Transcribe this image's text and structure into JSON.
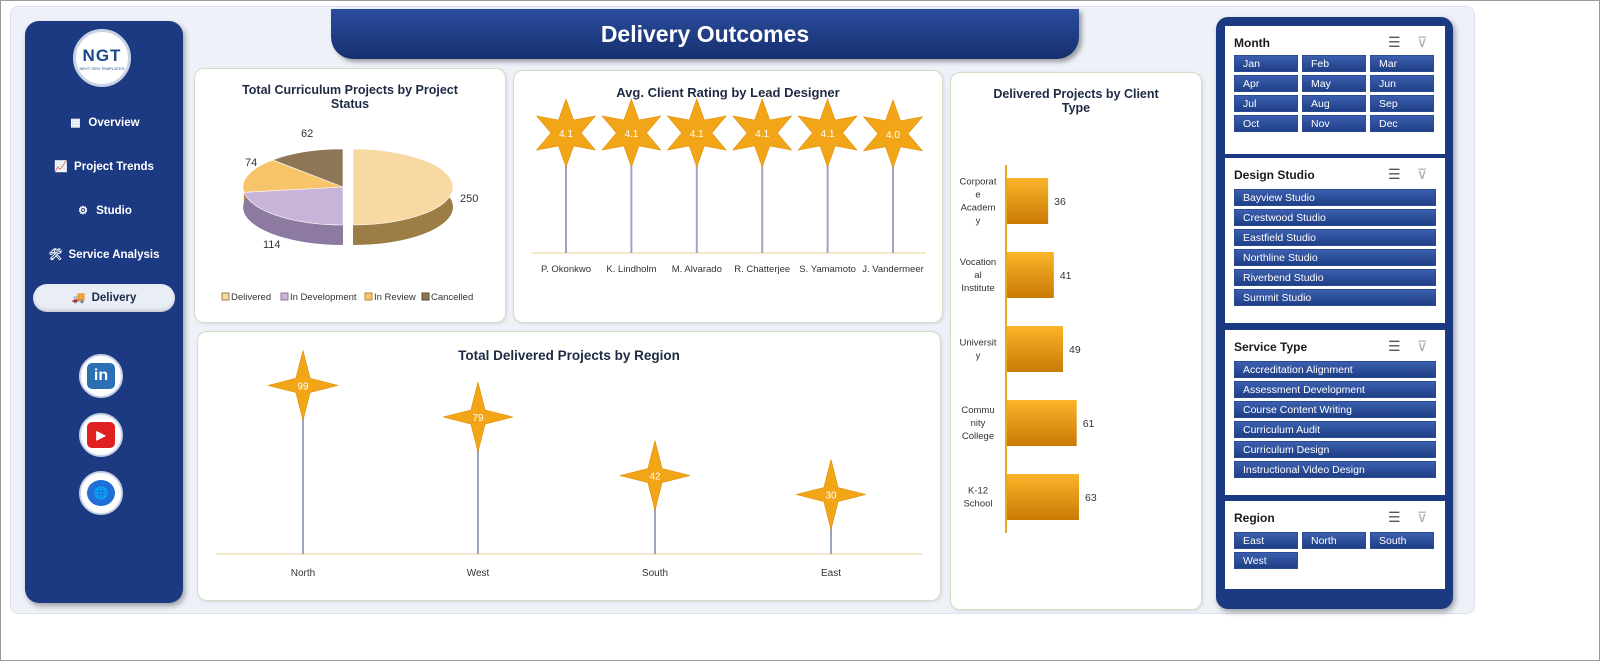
{
  "title": "Delivery Outcomes",
  "logo": {
    "text": "NGT",
    "subtext": "NEXT GEN TEMPLATES"
  },
  "nav": [
    {
      "label": "Overview",
      "icon": "bar-chart-icon",
      "glyph": "▦"
    },
    {
      "label": "Project Trends",
      "icon": "trend-chart-icon",
      "glyph": "📈"
    },
    {
      "label": "Studio",
      "icon": "gear-icon",
      "glyph": "⚙"
    },
    {
      "label": "Service Analysis",
      "icon": "tools-icon",
      "glyph": "🛠"
    },
    {
      "label": "Delivery",
      "icon": "delivery-truck-icon",
      "glyph": "🚚"
    }
  ],
  "social": [
    {
      "name": "linkedin-icon",
      "label": "in",
      "color": "#2c6fb4"
    },
    {
      "name": "youtube-icon",
      "label": "▶",
      "color": "#e02020"
    },
    {
      "name": "website-globe-icon",
      "label": "🌐",
      "color": "#1f6fd6"
    }
  ],
  "colors": {
    "navy": "#1c3a82",
    "star": "#f2a516",
    "pie_delivered": "#f8d9a4",
    "pie_dev": "#c7b4d8",
    "pie_review": "#f7c46a",
    "pie_cancel": "#8c7656"
  },
  "chart_data": [
    {
      "type": "pie",
      "title": "Total Curriculum Projects by Project Status",
      "categories": [
        "Delivered",
        "In Development",
        "In Review",
        "Cancelled"
      ],
      "values": [
        250,
        114,
        74,
        62
      ],
      "legend": "bottom"
    },
    {
      "type": "scatter",
      "title": "Avg. Client Rating by Lead Designer",
      "categories": [
        "P. Okonkwo",
        "K. Lindholm",
        "M. Alvarado",
        "R. Chatterjee",
        "S. Yamamoto",
        "J. Vandermeer"
      ],
      "values": [
        4.1,
        4.1,
        4.1,
        4.1,
        4.1,
        4.0
      ],
      "labels": [
        "4.1",
        "4.1",
        "4.1",
        "4.1",
        "4.1",
        "4.0"
      ]
    },
    {
      "type": "scatter",
      "title": "Total Delivered Projects by Region",
      "categories": [
        "North",
        "West",
        "South",
        "East"
      ],
      "values": [
        99,
        79,
        42,
        30
      ],
      "ylim": [
        0,
        110
      ]
    },
    {
      "type": "bar",
      "orientation": "horizontal",
      "title": "Delivered Projects by Client Type",
      "categories": [
        [
          "Corporat",
          "e",
          "Academ",
          "y"
        ],
        [
          "Vocation",
          "al",
          "Institute"
        ],
        [
          "Universit",
          "y"
        ],
        [
          "Commu",
          "nity",
          "College"
        ],
        [
          "K-12",
          "School"
        ]
      ],
      "values": [
        36,
        41,
        49,
        61,
        63
      ],
      "xlim": [
        0,
        70
      ]
    }
  ],
  "slicers": {
    "month": {
      "title": "Month",
      "items": [
        "Jan",
        "Feb",
        "Mar",
        "Apr",
        "May",
        "Jun",
        "Jul",
        "Aug",
        "Sep",
        "Oct",
        "Nov",
        "Dec"
      ]
    },
    "studio": {
      "title": "Design Studio",
      "items": [
        "Bayview Studio",
        "Crestwood Studio",
        "Eastfield Studio",
        "Northline Studio",
        "Riverbend Studio",
        "Summit Studio"
      ]
    },
    "service": {
      "title": "Service Type",
      "items": [
        "Accreditation Alignment",
        "Assessment Development",
        "Course Content Writing",
        "Curriculum Audit",
        "Curriculum Design",
        "Instructional Video Design"
      ]
    },
    "region": {
      "title": "Region",
      "items": [
        "East",
        "North",
        "South",
        "West"
      ]
    }
  }
}
